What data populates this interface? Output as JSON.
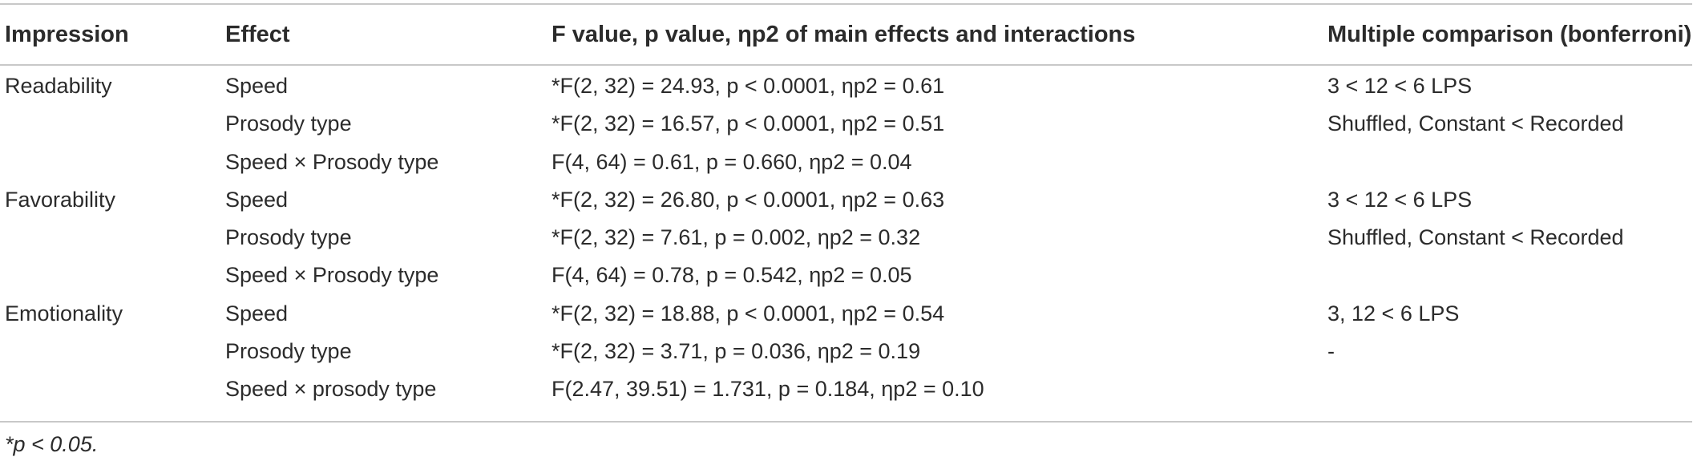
{
  "table": {
    "headers": {
      "impression": "Impression",
      "effect": "Effect",
      "stats": "F value, p value, ηp2 of main effects and interactions",
      "comparison": "Multiple comparison (bonferroni)"
    },
    "rows": [
      {
        "impression": "Readability",
        "effect": "Speed",
        "stats": "*F(2, 32) = 24.93, p < 0.0001, ηp2 = 0.61",
        "comparison": "3 < 12 < 6 LPS"
      },
      {
        "impression": "",
        "effect": "Prosody type",
        "stats": "*F(2, 32) = 16.57, p < 0.0001, ηp2 = 0.51",
        "comparison": "Shuffled, Constant < Recorded"
      },
      {
        "impression": "",
        "effect": "Speed × Prosody type",
        "stats": "F(4, 64) = 0.61, p = 0.660, ηp2 = 0.04",
        "comparison": ""
      },
      {
        "impression": "Favorability",
        "effect": "Speed",
        "stats": "*F(2, 32) = 26.80, p < 0.0001, ηp2 = 0.63",
        "comparison": "3 < 12 < 6 LPS"
      },
      {
        "impression": "",
        "effect": "Prosody type",
        "stats": "*F(2, 32) = 7.61, p = 0.002, ηp2 = 0.32",
        "comparison": "Shuffled, Constant < Recorded"
      },
      {
        "impression": "",
        "effect": "Speed × Prosody type",
        "stats": "F(4, 64) = 0.78, p = 0.542, ηp2 = 0.05",
        "comparison": ""
      },
      {
        "impression": "Emotionality",
        "effect": "Speed",
        "stats": "*F(2, 32) = 18.88, p < 0.0001, ηp2 = 0.54",
        "comparison": "3, 12 < 6 LPS"
      },
      {
        "impression": "",
        "effect": "Prosody type",
        "stats": "*F(2, 32) = 3.71, p = 0.036, ηp2 = 0.19",
        "comparison": "-"
      },
      {
        "impression": "",
        "effect": "Speed × prosody type",
        "stats": "F(2.47, 39.51) = 1.731, p = 0.184, ηp2 = 0.10",
        "comparison": ""
      }
    ],
    "footnote": "*p < 0.05."
  }
}
